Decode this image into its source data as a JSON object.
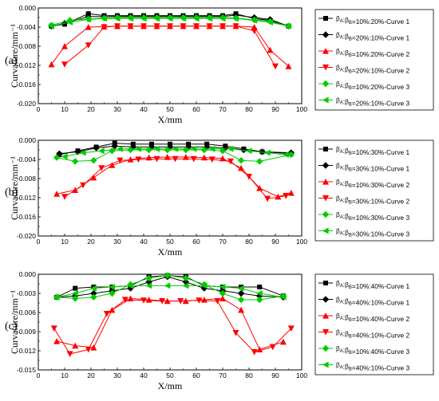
{
  "chart_data": [
    {
      "type": "line",
      "panel_label": "(a)",
      "xlabel": "X/mm",
      "ylabel": "Curvature/mm⁻¹",
      "xlim": [
        0,
        100
      ],
      "ylim": [
        -0.02,
        0.0
      ],
      "xticks": [
        "0",
        "10",
        "20",
        "30",
        "40",
        "50",
        "60",
        "70",
        "80",
        "90",
        "100"
      ],
      "yticks": [
        "0.000",
        "-0.004",
        "-0.008",
        "-0.012",
        "-0.016",
        "-0.020"
      ],
      "ytick_values": [
        0,
        -0.004,
        -0.008,
        -0.012,
        -0.016,
        -0.02
      ],
      "grid": false,
      "legend_position": "right",
      "series": [
        {
          "name": "βA:βB=10%:20%-Curve 1",
          "color": "#000000",
          "marker": "square",
          "x": [
            5,
            10,
            19,
            25,
            30,
            35,
            40,
            45,
            50,
            55,
            60,
            65,
            70,
            75,
            82,
            88,
            95
          ],
          "y": [
            -0.0038,
            -0.0034,
            -0.0012,
            -0.0016,
            -0.0016,
            -0.0016,
            -0.0016,
            -0.0016,
            -0.0016,
            -0.0016,
            -0.0016,
            -0.0016,
            -0.0016,
            -0.0012,
            -0.0022,
            -0.0026,
            -0.0038
          ]
        },
        {
          "name": "βA:βB=20%:10%-Curve 1",
          "color": "#000000",
          "marker": "diamond",
          "x": [
            5,
            10,
            19,
            25,
            30,
            35,
            40,
            45,
            50,
            55,
            60,
            65,
            70,
            75,
            82,
            88,
            95
          ],
          "y": [
            -0.0038,
            -0.0032,
            -0.0018,
            -0.0018,
            -0.0018,
            -0.0018,
            -0.0018,
            -0.0018,
            -0.0018,
            -0.0018,
            -0.0018,
            -0.0018,
            -0.0018,
            -0.0015,
            -0.002,
            -0.0024,
            -0.0038
          ]
        },
        {
          "name": "βA:βB=10%:20%-Curve 2",
          "color": "#ff0000",
          "marker": "triangle-up",
          "x": [
            5,
            10,
            19,
            25,
            30,
            35,
            40,
            45,
            50,
            55,
            60,
            65,
            70,
            75,
            82,
            88,
            95
          ],
          "y": [
            -0.0118,
            -0.008,
            -0.004,
            -0.0039,
            -0.0038,
            -0.0038,
            -0.0038,
            -0.0038,
            -0.0038,
            -0.0038,
            -0.0038,
            -0.0038,
            -0.0038,
            -0.0038,
            -0.004,
            -0.0088,
            -0.0122
          ]
        },
        {
          "name": "βA:βB=20%:10%-Curve 2",
          "color": "#ff0000",
          "marker": "triangle-down",
          "x": [
            10,
            19,
            25,
            30,
            35,
            40,
            45,
            50,
            55,
            60,
            65,
            70,
            75,
            82,
            90
          ],
          "y": [
            -0.0118,
            -0.0078,
            -0.004,
            -0.0038,
            -0.0038,
            -0.0038,
            -0.0038,
            -0.0038,
            -0.0038,
            -0.0038,
            -0.0038,
            -0.0038,
            -0.0038,
            -0.0048,
            -0.0122
          ]
        },
        {
          "name": "βA:βB=10%:20%-Curve 3",
          "color": "#00cc00",
          "marker": "diamond",
          "x": [
            5,
            12,
            19,
            25,
            30,
            35,
            40,
            45,
            50,
            55,
            60,
            65,
            70,
            75,
            82,
            88,
            95
          ],
          "y": [
            -0.0036,
            -0.0026,
            -0.0023,
            -0.0021,
            -0.002,
            -0.002,
            -0.002,
            -0.002,
            -0.002,
            -0.002,
            -0.002,
            -0.002,
            -0.002,
            -0.0021,
            -0.0025,
            -0.0028,
            -0.0038
          ]
        },
        {
          "name": "βA:βB=20%:10%-Curve 3",
          "color": "#00cc00",
          "marker": "triangle-left",
          "x": [
            5,
            12,
            19,
            25,
            30,
            35,
            40,
            45,
            50,
            55,
            60,
            65,
            70,
            75,
            82,
            88,
            95
          ],
          "y": [
            -0.0038,
            -0.003,
            -0.0024,
            -0.0022,
            -0.0022,
            -0.0022,
            -0.0022,
            -0.0022,
            -0.0022,
            -0.0022,
            -0.0022,
            -0.0022,
            -0.0022,
            -0.0022,
            -0.0026,
            -0.003,
            -0.0038
          ]
        }
      ]
    },
    {
      "type": "line",
      "panel_label": "(b)",
      "xlabel": "X/mm",
      "ylabel": "Curvature/mm⁻¹",
      "xlim": [
        0,
        100
      ],
      "ylim": [
        -0.02,
        0.0
      ],
      "xticks": [
        "0",
        "10",
        "20",
        "30",
        "40",
        "50",
        "60",
        "70",
        "80",
        "90",
        "100"
      ],
      "yticks": [
        "0.000",
        "-0.004",
        "-0.008",
        "-0.012",
        "-0.016",
        "-0.020"
      ],
      "ytick_values": [
        0,
        -0.004,
        -0.008,
        -0.012,
        -0.016,
        -0.02
      ],
      "grid": false,
      "legend_position": "right",
      "series": [
        {
          "name": "βA:βB=10%:30%-Curve 1",
          "color": "#000000",
          "marker": "square",
          "x": [
            8,
            15,
            22,
            29,
            36,
            43,
            50,
            57,
            64,
            71,
            78,
            85,
            96
          ],
          "y": [
            -0.003,
            -0.0022,
            -0.0014,
            -0.0006,
            -0.0008,
            -0.0008,
            -0.0008,
            -0.0008,
            -0.0008,
            -0.0012,
            -0.0018,
            -0.0024,
            -0.0028
          ]
        },
        {
          "name": "βA:βB=30%:10%-Curve 1",
          "color": "#000000",
          "marker": "diamond",
          "x": [
            8,
            15,
            22,
            29,
            36,
            43,
            50,
            57,
            64,
            71,
            78,
            85,
            96
          ],
          "y": [
            -0.0028,
            -0.0024,
            -0.0016,
            -0.0012,
            -0.0014,
            -0.0014,
            -0.0014,
            -0.0014,
            -0.0014,
            -0.0016,
            -0.002,
            -0.0024,
            -0.0026
          ]
        },
        {
          "name": "βA:βB=10%:30%-Curve 2",
          "color": "#ff0000",
          "marker": "triangle-up",
          "x": [
            7,
            14,
            21,
            28,
            35,
            42,
            49,
            56,
            63,
            70,
            77,
            84,
            91,
            96
          ],
          "y": [
            -0.0112,
            -0.0104,
            -0.0078,
            -0.0052,
            -0.004,
            -0.0036,
            -0.0035,
            -0.0035,
            -0.0036,
            -0.0038,
            -0.0058,
            -0.01,
            -0.0118,
            -0.011
          ]
        },
        {
          "name": "βA:βB=30%:10%-Curve 2",
          "color": "#ff0000",
          "marker": "triangle-down",
          "x": [
            10,
            17,
            24,
            31,
            38,
            45,
            52,
            59,
            66,
            73,
            80,
            87,
            94
          ],
          "y": [
            -0.0118,
            -0.0094,
            -0.0058,
            -0.0042,
            -0.004,
            -0.0039,
            -0.0039,
            -0.0039,
            -0.004,
            -0.0044,
            -0.0076,
            -0.0122,
            -0.0116
          ]
        },
        {
          "name": "βA:βB=10%:30%-Curve 3",
          "color": "#00cc00",
          "marker": "diamond",
          "x": [
            7,
            14,
            21,
            28,
            35,
            42,
            49,
            56,
            63,
            70,
            77,
            84,
            96
          ],
          "y": [
            -0.0036,
            -0.0044,
            -0.0042,
            -0.0022,
            -0.002,
            -0.002,
            -0.002,
            -0.002,
            -0.002,
            -0.0022,
            -0.0042,
            -0.0044,
            -0.003
          ]
        },
        {
          "name": "βA:βB=30%:10%-Curve 3",
          "color": "#00cc00",
          "marker": "triangle-left",
          "x": [
            10,
            17,
            24,
            31,
            38,
            45,
            52,
            59,
            66,
            73,
            80,
            87,
            94
          ],
          "y": [
            -0.0034,
            -0.0026,
            -0.0022,
            -0.0018,
            -0.0018,
            -0.0018,
            -0.0018,
            -0.0018,
            -0.0018,
            -0.0018,
            -0.0022,
            -0.0026,
            -0.003
          ]
        }
      ]
    },
    {
      "type": "line",
      "panel_label": "(c)",
      "xlabel": "X/mm",
      "ylabel": "Curvature/mm⁻¹",
      "xlim": [
        0,
        100
      ],
      "ylim": [
        -0.015,
        0.0
      ],
      "xticks": [
        "0",
        "10",
        "20",
        "30",
        "40",
        "50",
        "60",
        "70",
        "80",
        "90",
        "100"
      ],
      "yticks": [
        "0.000",
        "-0.003",
        "-0.006",
        "-0.009",
        "-0.012",
        "-0.015"
      ],
      "ytick_values": [
        0,
        -0.003,
        -0.006,
        -0.009,
        -0.012,
        -0.015
      ],
      "grid": false,
      "legend_position": "right",
      "series": [
        {
          "name": "βA:βB=10%:40%-Curve 1",
          "color": "#000000",
          "marker": "square",
          "x": [
            7,
            14,
            21,
            28,
            35,
            42,
            49,
            56,
            63,
            70,
            77,
            84,
            93
          ],
          "y": [
            -0.0036,
            -0.0022,
            -0.002,
            -0.002,
            -0.0018,
            -0.0004,
            -0.0002,
            -0.0004,
            -0.0018,
            -0.002,
            -0.002,
            -0.002,
            -0.0034
          ]
        },
        {
          "name": "βA:βB=40%:10%-Curve 1",
          "color": "#000000",
          "marker": "diamond",
          "x": [
            7,
            14,
            21,
            28,
            35,
            42,
            49,
            56,
            63,
            70,
            77,
            84,
            93
          ],
          "y": [
            -0.0036,
            -0.0034,
            -0.003,
            -0.0026,
            -0.0022,
            -0.0012,
            -0.0004,
            -0.0012,
            -0.0022,
            -0.0026,
            -0.003,
            -0.0034,
            -0.0036
          ]
        },
        {
          "name": "βA:βB=10%:40%-Curve 2",
          "color": "#ff0000",
          "marker": "triangle-up",
          "x": [
            7,
            14,
            21,
            28,
            35,
            42,
            49,
            56,
            63,
            70,
            77,
            84,
            93
          ],
          "y": [
            -0.0105,
            -0.0112,
            -0.0115,
            -0.0056,
            -0.0038,
            -0.004,
            -0.0042,
            -0.0042,
            -0.004,
            -0.0038,
            -0.0056,
            -0.0118,
            -0.0106
          ]
        },
        {
          "name": "βA:βB=40%:10%-Curve 2",
          "color": "#ff0000",
          "marker": "triangle-down",
          "x": [
            6,
            12,
            19,
            26,
            33,
            40,
            47,
            54,
            61,
            68,
            75,
            82,
            89,
            96
          ],
          "y": [
            -0.0085,
            -0.0125,
            -0.0118,
            -0.0062,
            -0.004,
            -0.0041,
            -0.0042,
            -0.0042,
            -0.0041,
            -0.0042,
            -0.0092,
            -0.0122,
            -0.0114,
            -0.0085
          ]
        },
        {
          "name": "βA:βB=10%:40%-Curve 3",
          "color": "#00cc00",
          "marker": "diamond",
          "x": [
            7,
            14,
            21,
            28,
            35,
            42,
            49,
            56,
            63,
            70,
            77,
            84,
            93
          ],
          "y": [
            -0.0036,
            -0.0038,
            -0.0036,
            -0.003,
            -0.0016,
            -0.0006,
            -0.0002,
            -0.0006,
            -0.0016,
            -0.003,
            -0.004,
            -0.004,
            -0.0034
          ]
        },
        {
          "name": "βA:βB=40%:10%-Curve 3",
          "color": "#00cc00",
          "marker": "triangle-left",
          "x": [
            7,
            14,
            21,
            28,
            35,
            42,
            49,
            56,
            63,
            70,
            77,
            84,
            93
          ],
          "y": [
            -0.0036,
            -0.003,
            -0.0022,
            -0.002,
            -0.0018,
            -0.0018,
            -0.0018,
            -0.0018,
            -0.0018,
            -0.002,
            -0.0022,
            -0.003,
            -0.0036
          ]
        }
      ]
    }
  ]
}
